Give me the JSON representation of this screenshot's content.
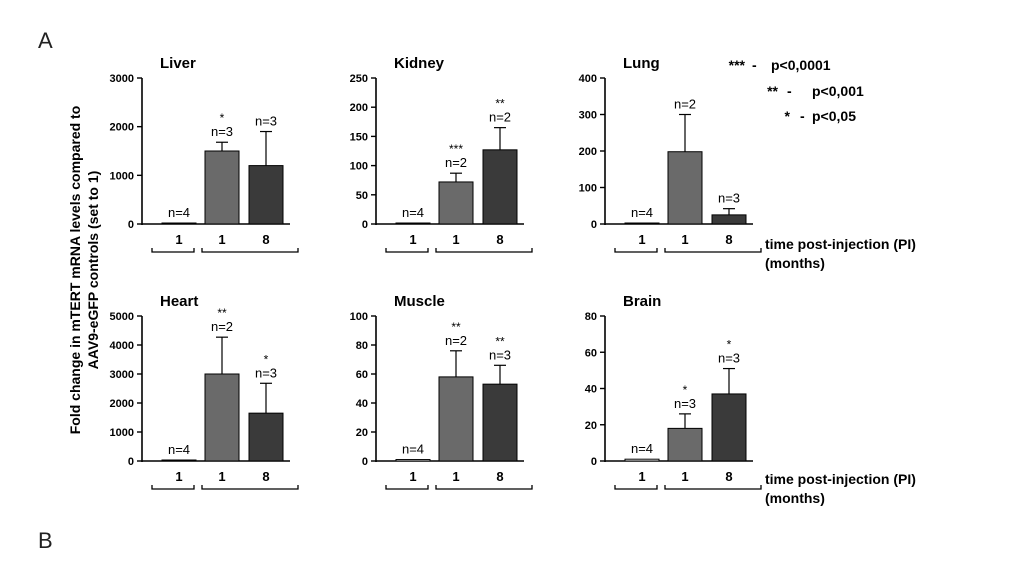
{
  "figure": {
    "panel_a": "A",
    "panel_b": "B",
    "ylabel_line1": "Fold change in mTERT mRNA levels compared to",
    "ylabel_line2": "AAV9-eGFP controls (set to 1)",
    "xaxis_note_line1": "time post-injection (PI)",
    "xaxis_note_line2": "(months)",
    "xaxis_note2_line1": "time post-injection (PI)",
    "xaxis_note2_line2": "(months)"
  },
  "legend": [
    {
      "stars": "***",
      "text": "p<0,0001"
    },
    {
      "stars": "**",
      "text": "p<0,001"
    },
    {
      "stars": "*",
      "text": "p<0,05"
    }
  ],
  "colors": {
    "bar_control": "#ffffff",
    "bar_month1": "#6a6a6a",
    "bar_month8": "#3a3a3a"
  },
  "chart_data": [
    {
      "type": "bar",
      "title": "Liver",
      "categories": [
        "1",
        "1",
        "8"
      ],
      "values": [
        1,
        1500,
        1200
      ],
      "errors": [
        0,
        180,
        700
      ],
      "n_labels": [
        "n=4",
        "n=3",
        "n=3"
      ],
      "stars": [
        "",
        "*",
        ""
      ],
      "ylim": [
        0,
        3000
      ],
      "yticks": [
        0,
        1000,
        2000,
        3000
      ]
    },
    {
      "type": "bar",
      "title": "Kidney",
      "categories": [
        "1",
        "1",
        "8"
      ],
      "values": [
        1,
        72,
        127
      ],
      "errors": [
        0,
        15,
        38
      ],
      "n_labels": [
        "n=4",
        "n=2",
        "n=2"
      ],
      "stars": [
        "",
        "***",
        "**"
      ],
      "ylim": [
        0,
        250
      ],
      "yticks": [
        0,
        50,
        100,
        150,
        200,
        250
      ]
    },
    {
      "type": "bar",
      "title": "Lung",
      "categories": [
        "1",
        "1",
        "8"
      ],
      "values": [
        1,
        198,
        25
      ],
      "errors": [
        0,
        102,
        17
      ],
      "n_labels": [
        "n=4",
        "n=2",
        "n=3"
      ],
      "stars": [
        "",
        "",
        ""
      ],
      "ylim": [
        0,
        400
      ],
      "yticks": [
        0,
        100,
        200,
        300,
        400
      ]
    },
    {
      "type": "bar",
      "title": "Heart",
      "categories": [
        "1",
        "1",
        "8"
      ],
      "values": [
        1,
        3000,
        1650
      ],
      "errors": [
        0,
        1270,
        1030
      ],
      "n_labels": [
        "n=4",
        "n=2",
        "n=3"
      ],
      "stars": [
        "",
        "**",
        "*"
      ],
      "ylim": [
        0,
        5000
      ],
      "yticks": [
        0,
        1000,
        2000,
        3000,
        4000,
        5000
      ]
    },
    {
      "type": "bar",
      "title": "Muscle",
      "categories": [
        "1",
        "1",
        "8"
      ],
      "values": [
        1,
        58,
        53
      ],
      "errors": [
        0,
        18,
        13
      ],
      "n_labels": [
        "n=4",
        "n=2",
        "n=3"
      ],
      "stars": [
        "",
        "**",
        "**"
      ],
      "ylim": [
        0,
        100
      ],
      "yticks": [
        0,
        20,
        40,
        60,
        80,
        100
      ]
    },
    {
      "type": "bar",
      "title": "Brain",
      "categories": [
        "1",
        "1",
        "8"
      ],
      "values": [
        1,
        18,
        37
      ],
      "errors": [
        0,
        8,
        14
      ],
      "n_labels": [
        "n=4",
        "n=3",
        "n=3"
      ],
      "stars": [
        "",
        "*",
        "*"
      ],
      "ylim": [
        0,
        80
      ],
      "yticks": [
        0,
        20,
        40,
        60,
        80
      ]
    }
  ]
}
